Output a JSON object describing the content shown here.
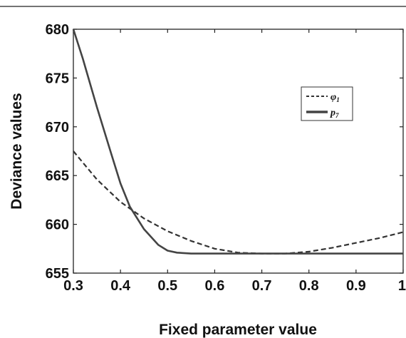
{
  "chart_data": {
    "type": "line",
    "title": "",
    "xlabel": "Fixed parameter value",
    "ylabel": "Deviance values",
    "xlim": [
      0.3,
      1.0
    ],
    "ylim": [
      655,
      680
    ],
    "x_ticks": [
      "0.3",
      "0.4",
      "0.5",
      "0.6",
      "0.7",
      "0.8",
      "0.9",
      "1"
    ],
    "y_ticks": [
      "655",
      "660",
      "665",
      "670",
      "675",
      "680"
    ],
    "grid": false,
    "legend_position": "top-right",
    "series": [
      {
        "name": "φ",
        "subscript": "1",
        "style": "dashed",
        "color": "#333333",
        "x": [
          0.3,
          0.35,
          0.4,
          0.45,
          0.5,
          0.55,
          0.6,
          0.65,
          0.7,
          0.75,
          0.8,
          0.85,
          0.9,
          0.95,
          1.0
        ],
        "y": [
          667.5,
          664.6,
          662.3,
          660.6,
          659.3,
          658.3,
          657.5,
          657.1,
          657.0,
          657.0,
          657.2,
          657.6,
          658.1,
          658.6,
          659.2
        ]
      },
      {
        "name": "p",
        "subscript": "7",
        "style": "solid",
        "color": "#444444",
        "x": [
          0.3,
          0.32,
          0.35,
          0.38,
          0.4,
          0.42,
          0.45,
          0.48,
          0.5,
          0.52,
          0.55,
          0.6,
          0.7,
          0.8,
          0.9,
          1.0
        ],
        "y": [
          680.0,
          677.0,
          672.0,
          667.3,
          664.2,
          661.8,
          659.5,
          657.9,
          657.3,
          657.1,
          657.0,
          657.0,
          657.0,
          657.0,
          657.0,
          657.0
        ]
      }
    ]
  }
}
